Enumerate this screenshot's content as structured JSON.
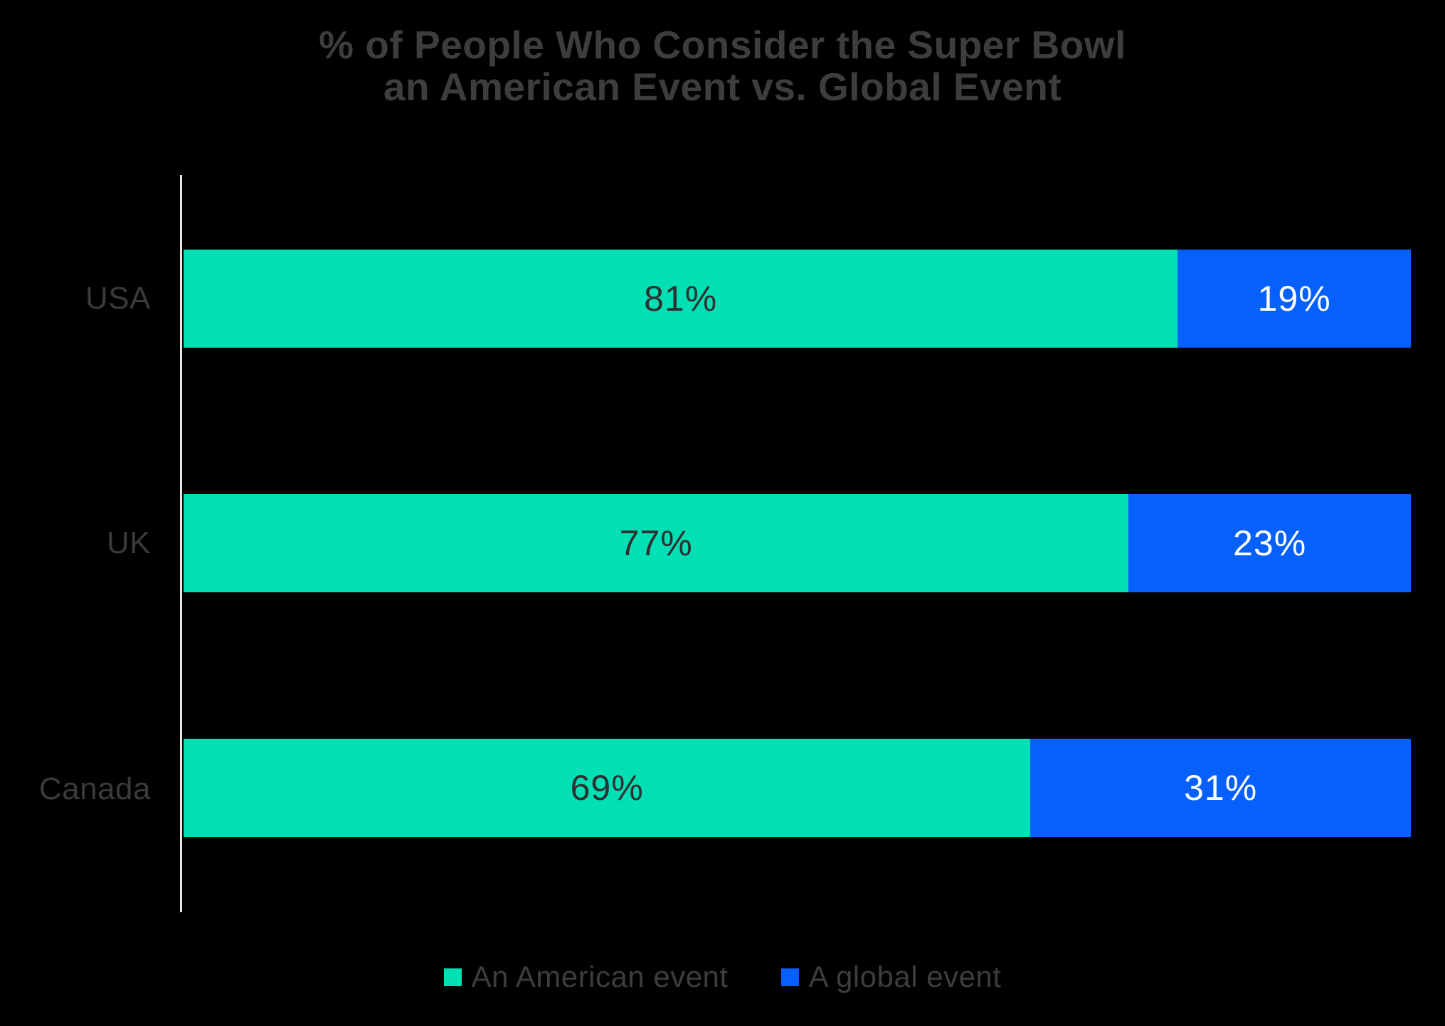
{
  "title": {
    "line1": "% of People Who Consider the Super Bowl",
    "line2": "an American Event vs. Global Event"
  },
  "chart_data": {
    "type": "bar",
    "orientation": "horizontal",
    "stacked": true,
    "title": "% of People Who Consider the Super Bowl an American Event vs. Global Event",
    "categories": [
      "USA",
      "UK",
      "Canada"
    ],
    "series": [
      {
        "name": "An American event",
        "color": "#00E0B4",
        "values": [
          81,
          77,
          69
        ],
        "labels": [
          "81%",
          "77%",
          "69%"
        ]
      },
      {
        "name": "A global event",
        "color": "#0560FC",
        "values": [
          19,
          23,
          31
        ],
        "labels": [
          "19%",
          "23%",
          "31%"
        ]
      }
    ],
    "xlim": [
      0,
      100
    ],
    "value_suffix": "%",
    "grid": false,
    "legend_position": "bottom",
    "background_color": "#000000",
    "title_color": "#3D3D3F",
    "category_label_color": "#3A3A3C",
    "axis_line_color": "#E7E7E7",
    "value_label_color_on_american": "#2F2F31",
    "value_label_color_on_global": "#FFFFFF"
  }
}
